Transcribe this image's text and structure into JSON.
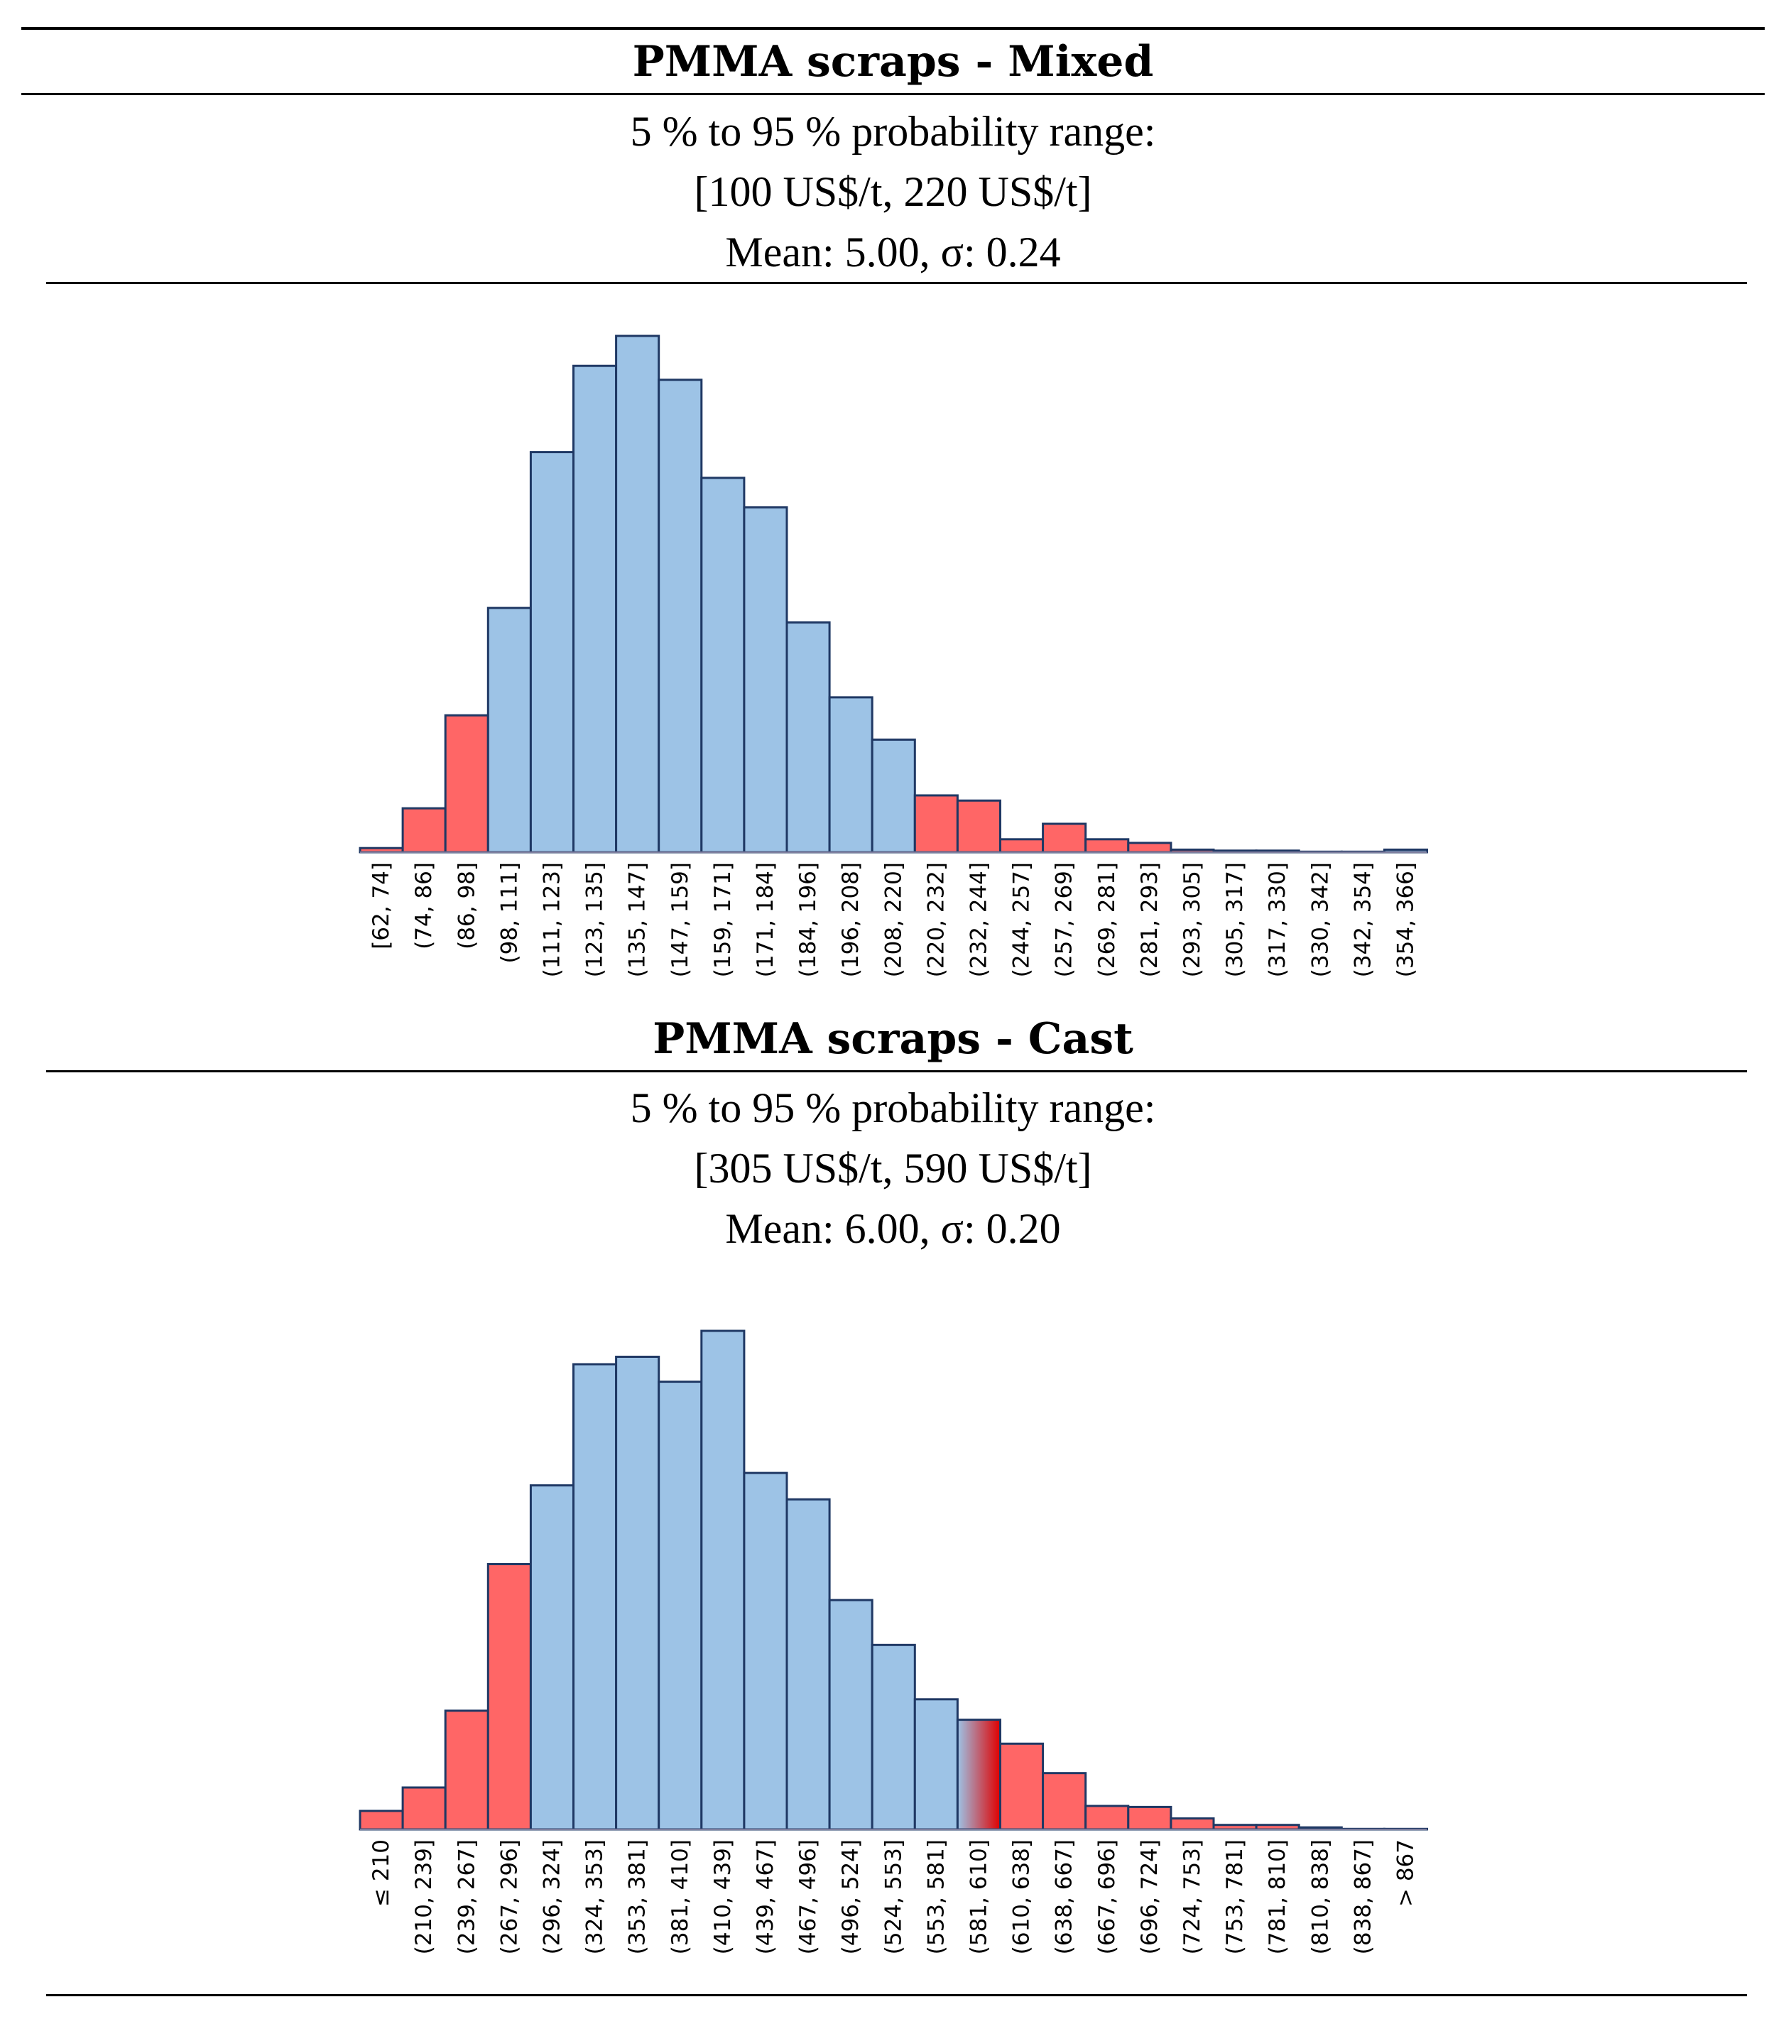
{
  "chart_data": [
    {
      "type": "bar",
      "title": "PMMA scraps - Mixed",
      "range_label": "5 % to 95 % probability range:",
      "range_value": "[100 US$/t, 220 US$/t]",
      "stats": "Mean: 5.00, σ: 0.24",
      "categories": [
        "[62, 74]",
        "(74, 86]",
        "(86, 98]",
        "(98, 111]",
        "(111, 123]",
        "(123, 135]",
        "(135, 147]",
        "(147, 159]",
        "(159, 171]",
        "(171, 184]",
        "(184, 196]",
        "(196, 208]",
        "(208, 220]",
        "(220, 232]",
        "(232, 244]",
        "(244, 257]",
        "(257, 269]",
        "(269, 281]",
        "(281, 293]",
        "(293, 305]",
        "(305, 317]",
        "(317, 330]",
        "(330, 342]",
        "(342, 354]",
        "(354, 366]"
      ],
      "values": [
        0.8,
        8.5,
        26.5,
        47.3,
        77.5,
        94.2,
        100,
        91.5,
        72.5,
        66.8,
        44.5,
        30.0,
        21.8,
        11.0,
        10.0,
        2.5,
        5.5,
        2.5,
        1.8,
        0.5,
        0.3,
        0.3,
        0.1,
        0.1,
        0.5
      ],
      "colors": [
        "#FF6666",
        "#FF6666",
        "#FF6666",
        "#9DC3E6",
        "#9DC3E6",
        "#9DC3E6",
        "#9DC3E6",
        "#9DC3E6",
        "#9DC3E6",
        "#9DC3E6",
        "#9DC3E6",
        "#9DC3E6",
        "#9DC3E6",
        "#FF6666",
        "#FF6666",
        "#FF6666",
        "#FF6666",
        "#FF6666",
        "#FF6666",
        "#FF6666",
        "#FF6666",
        "#FF6666",
        "#FF6666",
        "#FF6666",
        "#9DC3E6"
      ],
      "ylim": [
        0,
        100
      ],
      "xlabel": "",
      "ylabel": ""
    },
    {
      "type": "bar",
      "title": "PMMA scraps - Cast",
      "range_label": "5 % to 95 % probability range:",
      "range_value": "[305 US$/t, 590 US$/t]",
      "stats": "Mean: 6.00, σ: 0.20",
      "categories": [
        "≤ 210",
        "(210, 239]",
        "(239, 267]",
        "(267, 296]",
        "(296, 324]",
        "(324, 353]",
        "(353, 381]",
        "(381, 410]",
        "(410, 439]",
        "(439, 467]",
        "(467, 496]",
        "(496, 524]",
        "(524, 553]",
        "(553, 581]",
        "(581, 610]",
        "(610, 638]",
        "(638, 667]",
        "(667, 696]",
        "(696, 724]",
        "(724, 753]",
        "(753, 781]",
        "(781, 810]",
        "(810, 838]",
        "(838, 867]",
        "> 867"
      ],
      "values": [
        3.7,
        8.4,
        23.8,
        53.2,
        69.0,
        93.3,
        94.8,
        89.8,
        100,
        71.5,
        66.2,
        46.0,
        37.0,
        26.1,
        22.0,
        17.2,
        11.3,
        4.7,
        4.5,
        2.2,
        0.9,
        0.9,
        0.4,
        0.1,
        0.1
      ],
      "colors": [
        "#FF6666",
        "#FF6666",
        "#FF6666",
        "#FF6666",
        "#9DC3E6",
        "#9DC3E6",
        "#9DC3E6",
        "#9DC3E6",
        "#9DC3E6",
        "#9DC3E6",
        "#9DC3E6",
        "#9DC3E6",
        "#9DC3E6",
        "#9DC3E6",
        "gradient",
        "#FF6666",
        "#FF6666",
        "#FF6666",
        "#FF6666",
        "#FF6666",
        "#FF6666",
        "#FF6666",
        "#FF6666",
        "#FF6666",
        "#FF6666"
      ],
      "ylim": [
        0,
        100
      ],
      "xlabel": "",
      "ylabel": ""
    }
  ],
  "style": {
    "bar_border": "#1F3864",
    "axis_color": "#7F7F9F",
    "gradient_from": "#9DC3E6",
    "gradient_to": "#E00000"
  }
}
